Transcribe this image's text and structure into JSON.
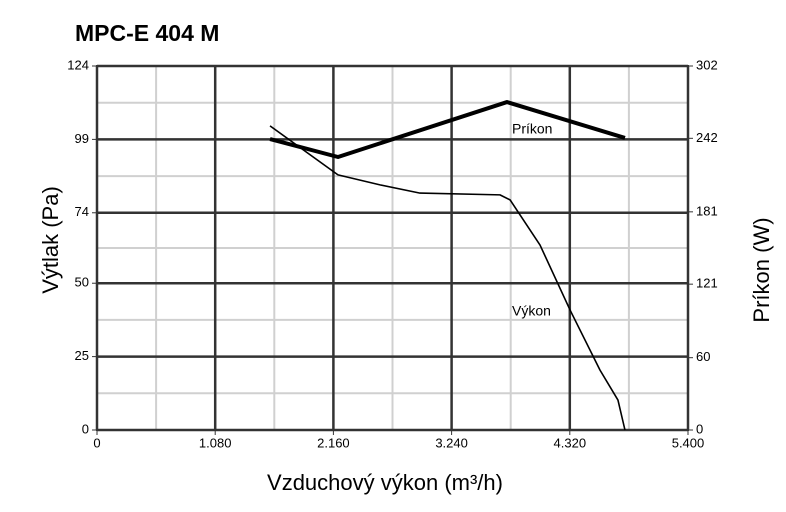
{
  "chart_data": {
    "type": "line",
    "title": "MPC-E 404 M",
    "x_label": "Vzduchový výkon (m³/h)",
    "y_label": "Výtlak (Pa)",
    "y2_label": "Príkon (W)",
    "xlim": [
      0,
      5400
    ],
    "xticks": [
      0,
      {
        "value": 1080,
        "label": "1.080"
      },
      {
        "value": 2160,
        "label": "2.160"
      },
      {
        "value": 3240,
        "label": "3.240"
      },
      {
        "value": 4320,
        "label": "4.320"
      },
      {
        "value": 5400,
        "label": "5.400"
      }
    ],
    "ylim": [
      0,
      124
    ],
    "yticks": [
      0,
      25,
      50,
      74,
      99,
      124
    ],
    "y2lim": [
      0,
      302
    ],
    "y2ticks": [
      0,
      60,
      121,
      181,
      242,
      302
    ],
    "grid": true,
    "series": [
      {
        "name": "Výkon",
        "color": "#000000",
        "axis": "y",
        "x": [
          1581,
          2202,
          2586,
          2951,
          3682,
          3774,
          4048,
          4322,
          4596,
          4760,
          4824
        ],
        "values": [
          103.6,
          86.9,
          83.5,
          80.7,
          80.1,
          78.4,
          63.0,
          40.9,
          20.4,
          10.2,
          0
        ]
      },
      {
        "name": "Príkon",
        "color": "#000000",
        "axis": "y2",
        "x": [
          1581,
          2202,
          3746,
          4824
        ],
        "values": [
          241.4,
          226.5,
          272.1,
          242.3
        ]
      }
    ]
  }
}
